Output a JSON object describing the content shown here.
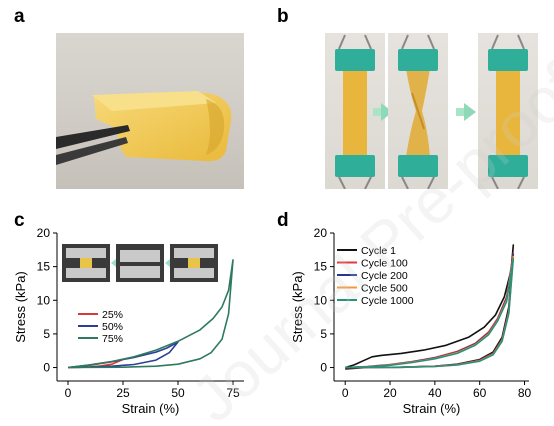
{
  "panels": {
    "a": "a",
    "b": "b",
    "c": "c",
    "d": "d"
  },
  "watermark": "Journal Pre-proof",
  "colors": {
    "tape_yellow": "#f3cd58",
    "clip_green": "#2fae9a",
    "arrow_green": "#9ee0c2",
    "green_curve": "#2f7a5f",
    "blue_curve": "#2b3f9a",
    "red_curve": "#d43a3a"
  },
  "chart_data": [
    {
      "type": "line",
      "title": "",
      "xlabel": "Strain (%)",
      "ylabel": "Stress (kPa)",
      "xlim": [
        -5,
        80
      ],
      "ylim": [
        -2,
        20
      ],
      "xticks": [
        "0",
        "25",
        "50",
        "75"
      ],
      "yticks": [
        "0",
        "5",
        "10",
        "15",
        "20"
      ],
      "legend": "center-left",
      "series": [
        {
          "name": "25%",
          "color": "#d43a3a",
          "loading": [
            [
              0,
              0
            ],
            [
              5,
              0.15
            ],
            [
              10,
              0.35
            ],
            [
              15,
              0.6
            ],
            [
              20,
              0.85
            ],
            [
              25,
              1.2
            ]
          ],
          "unloading": [
            [
              25,
              1.2
            ],
            [
              20,
              0.5
            ],
            [
              15,
              0.25
            ],
            [
              10,
              0.1
            ],
            [
              5,
              0.03
            ],
            [
              0,
              0
            ]
          ]
        },
        {
          "name": "50%",
          "color": "#2b3f9a",
          "loading": [
            [
              0,
              0
            ],
            [
              10,
              0.4
            ],
            [
              20,
              0.9
            ],
            [
              30,
              1.5
            ],
            [
              40,
              2.3
            ],
            [
              45,
              2.9
            ],
            [
              50,
              3.8
            ]
          ],
          "unloading": [
            [
              50,
              3.8
            ],
            [
              46,
              2.2
            ],
            [
              40,
              1.1
            ],
            [
              30,
              0.45
            ],
            [
              20,
              0.2
            ],
            [
              10,
              0.06
            ],
            [
              0,
              0
            ]
          ]
        },
        {
          "name": "75%",
          "color": "#2f7a5f",
          "loading": [
            [
              0,
              0
            ],
            [
              10,
              0.4
            ],
            [
              20,
              0.9
            ],
            [
              30,
              1.6
            ],
            [
              40,
              2.6
            ],
            [
              50,
              3.9
            ],
            [
              60,
              5.6
            ],
            [
              66,
              7.3
            ],
            [
              70,
              9.0
            ],
            [
              73,
              11.5
            ],
            [
              75,
              16.0
            ]
          ],
          "unloading": [
            [
              75,
              16.0
            ],
            [
              73,
              8.0
            ],
            [
              70,
              4.2
            ],
            [
              65,
              2.2
            ],
            [
              60,
              1.3
            ],
            [
              50,
              0.5
            ],
            [
              40,
              0.2
            ],
            [
              25,
              0.05
            ],
            [
              0,
              0
            ]
          ]
        }
      ]
    },
    {
      "type": "line",
      "title": "",
      "xlabel": "Strain (%)",
      "ylabel": "Stress (kPa)",
      "xlim": [
        -5,
        82
      ],
      "ylim": [
        -2,
        20
      ],
      "xticks": [
        "0",
        "20",
        "40",
        "60",
        "80"
      ],
      "yticks": [
        "0",
        "5",
        "10",
        "15",
        "20"
      ],
      "legend": "top-left",
      "series": [
        {
          "name": "Cycle 1",
          "color": "#111111",
          "loading": [
            [
              0,
              0
            ],
            [
              4,
              0.4
            ],
            [
              8,
              1.0
            ],
            [
              12,
              1.6
            ],
            [
              16,
              1.8
            ],
            [
              25,
              2.1
            ],
            [
              35,
              2.6
            ],
            [
              45,
              3.3
            ],
            [
              55,
              4.5
            ],
            [
              62,
              6.0
            ],
            [
              67,
              7.8
            ],
            [
              71,
              10.5
            ],
            [
              74,
              14.5
            ],
            [
              75,
              18.2
            ]
          ],
          "unloading": [
            [
              75,
              18.2
            ],
            [
              73,
              9.0
            ],
            [
              70,
              4.5
            ],
            [
              66,
              2.3
            ],
            [
              60,
              1.2
            ],
            [
              50,
              0.5
            ],
            [
              40,
              0.2
            ],
            [
              25,
              0.05
            ],
            [
              10,
              0.0
            ],
            [
              0,
              -0.2
            ]
          ]
        },
        {
          "name": "Cycle 100",
          "color": "#e03b3b",
          "loading": [
            [
              0,
              0
            ],
            [
              10,
              0.15
            ],
            [
              20,
              0.45
            ],
            [
              30,
              0.9
            ],
            [
              40,
              1.5
            ],
            [
              50,
              2.4
            ],
            [
              58,
              3.6
            ],
            [
              64,
              5.3
            ],
            [
              68,
              7.3
            ],
            [
              72,
              10.5
            ],
            [
              75,
              17.0
            ]
          ],
          "unloading": [
            [
              75,
              17.0
            ],
            [
              73,
              8.5
            ],
            [
              70,
              4.2
            ],
            [
              66,
              2.1
            ],
            [
              60,
              1.1
            ],
            [
              50,
              0.45
            ],
            [
              40,
              0.2
            ],
            [
              25,
              0.05
            ],
            [
              0,
              0
            ]
          ]
        },
        {
          "name": "Cycle 200",
          "color": "#25378f",
          "loading": [
            [
              0,
              0
            ],
            [
              10,
              0.12
            ],
            [
              20,
              0.4
            ],
            [
              30,
              0.85
            ],
            [
              40,
              1.4
            ],
            [
              50,
              2.3
            ],
            [
              58,
              3.5
            ],
            [
              64,
              5.1
            ],
            [
              68,
              7.1
            ],
            [
              72,
              10.2
            ],
            [
              75,
              16.8
            ]
          ],
          "unloading": [
            [
              75,
              16.8
            ],
            [
              73,
              8.4
            ],
            [
              70,
              4.1
            ],
            [
              66,
              2.0
            ],
            [
              60,
              1.05
            ],
            [
              50,
              0.42
            ],
            [
              40,
              0.18
            ],
            [
              25,
              0.04
            ],
            [
              0,
              0
            ]
          ]
        },
        {
          "name": "Cycle 500",
          "color": "#f29a38",
          "loading": [
            [
              0,
              0
            ],
            [
              10,
              0.1
            ],
            [
              20,
              0.37
            ],
            [
              30,
              0.8
            ],
            [
              40,
              1.35
            ],
            [
              50,
              2.2
            ],
            [
              58,
              3.4
            ],
            [
              64,
              5.0
            ],
            [
              68,
              7.0
            ],
            [
              72,
              10.0
            ],
            [
              75,
              16.5
            ]
          ],
          "unloading": [
            [
              75,
              16.5
            ],
            [
              73,
              8.2
            ],
            [
              70,
              4.0
            ],
            [
              66,
              1.95
            ],
            [
              60,
              1.0
            ],
            [
              50,
              0.4
            ],
            [
              40,
              0.17
            ],
            [
              25,
              0.04
            ],
            [
              0,
              0
            ]
          ]
        },
        {
          "name": "Cycle 1000",
          "color": "#2a9179",
          "loading": [
            [
              0,
              0
            ],
            [
              10,
              0.08
            ],
            [
              20,
              0.33
            ],
            [
              30,
              0.75
            ],
            [
              40,
              1.3
            ],
            [
              50,
              2.1
            ],
            [
              58,
              3.3
            ],
            [
              64,
              4.9
            ],
            [
              68,
              6.9
            ],
            [
              72,
              9.8
            ],
            [
              75,
              16.2
            ]
          ],
          "unloading": [
            [
              75,
              16.2
            ],
            [
              73,
              8.0
            ],
            [
              70,
              3.9
            ],
            [
              66,
              1.9
            ],
            [
              60,
              0.95
            ],
            [
              50,
              0.38
            ],
            [
              40,
              0.16
            ],
            [
              25,
              0.03
            ],
            [
              0,
              0
            ]
          ]
        }
      ]
    }
  ]
}
